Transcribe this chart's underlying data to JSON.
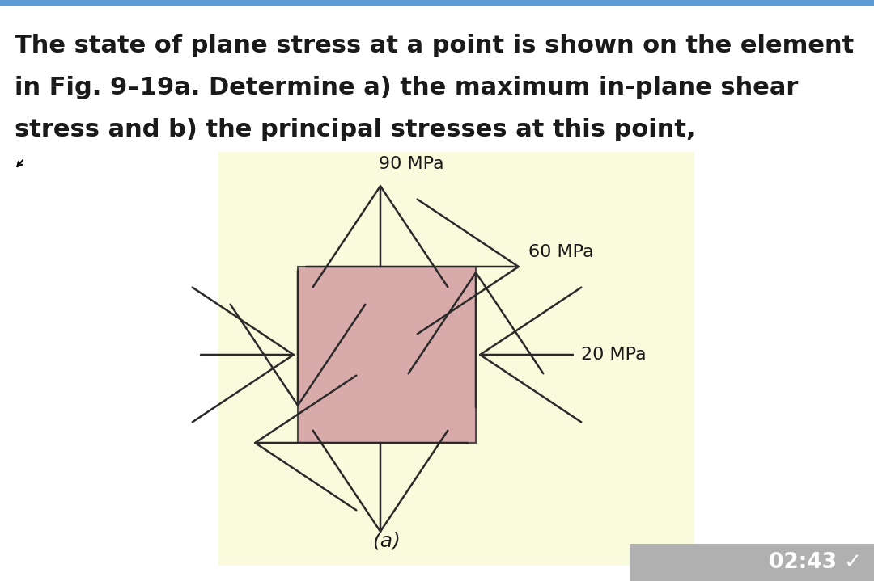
{
  "title_line1": "The state of plane stress at a point is shown on the element",
  "title_line2": "in Fig. 9–19a. Determine a) the maximum in-plane shear",
  "title_line3": "stress and b) the principal stresses at this point,",
  "title_fontsize": 22,
  "text_color": "#1a1a1a",
  "bg_color": "#ffffff",
  "panel_bg": "#fafadc",
  "box_fill": "#d9aaaa",
  "box_edge": "#4a4a4a",
  "label_90": "90 MPa",
  "label_60": "60 MPa",
  "label_20": "20 MPa",
  "label_a": "(a)",
  "arrow_color": "#2a2a2a",
  "top_bar_color": "#5b9bd5",
  "ts_bg": "#b0b0b0",
  "timestamp": "02:43",
  "ts_check": "✓"
}
